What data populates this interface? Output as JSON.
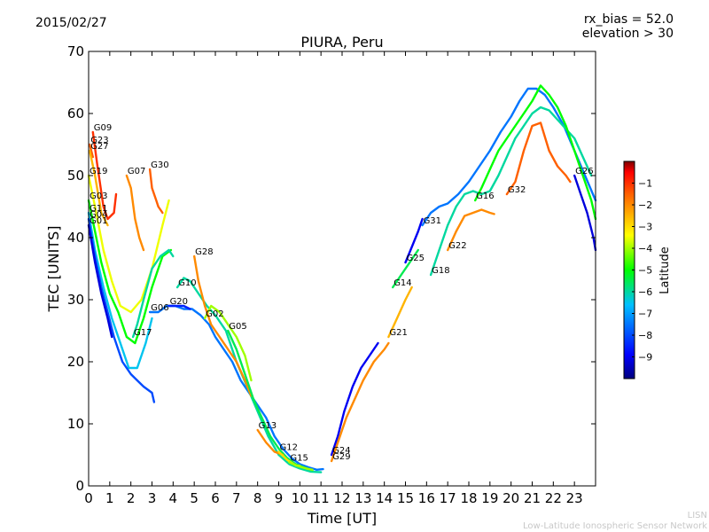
{
  "header": {
    "date": "2015/02/27",
    "rx_bias": "rx_bias = 52.0",
    "elevation": "elevation > 30",
    "title": "PIURA, Peru"
  },
  "footer": {
    "line1": "LISN",
    "line2": "Low-Latitude Ionospheric Sensor Network"
  },
  "chart_data": {
    "type": "scatter",
    "title": "PIURA, Peru",
    "xlabel": "Time [UT]",
    "ylabel": "TEC [UNITS]",
    "xlim": [
      0,
      24
    ],
    "ylim": [
      0,
      70
    ],
    "xticks": [
      0,
      1,
      2,
      3,
      4,
      5,
      6,
      7,
      8,
      9,
      10,
      11,
      12,
      13,
      14,
      15,
      16,
      17,
      18,
      19,
      20,
      21,
      22,
      23
    ],
    "yticks": [
      0,
      10,
      20,
      30,
      40,
      50,
      60,
      70
    ],
    "grid": false,
    "colorbar": {
      "label": "Latitude",
      "range": [
        -10,
        0
      ],
      "ticks": [
        -9,
        -8,
        -7,
        -6,
        -5,
        -4,
        -3,
        -2,
        -1
      ],
      "colors": [
        "#00007f",
        "#0000ff",
        "#007fff",
        "#00ffff",
        "#7fff7f",
        "#ffff00",
        "#ff7f00",
        "#ff0000",
        "#7f0000"
      ]
    },
    "series": [
      {
        "name": "G09",
        "lat": -1.0,
        "points": [
          [
            0.2,
            57
          ],
          [
            0.4,
            52
          ],
          [
            0.7,
            45
          ],
          [
            0.9,
            43
          ],
          [
            1.2,
            44
          ],
          [
            1.3,
            47
          ]
        ]
      },
      {
        "name": "G23",
        "lat": -1.5,
        "points": [
          [
            0.05,
            55
          ],
          [
            0.2,
            53
          ]
        ]
      },
      {
        "name": "G27",
        "lat": -2.5,
        "points": [
          [
            0.05,
            54
          ],
          [
            0.3,
            50
          ],
          [
            0.6,
            44
          ],
          [
            0.9,
            42
          ]
        ]
      },
      {
        "name": "G19",
        "lat": -3.5,
        "points": [
          [
            0.0,
            50
          ],
          [
            0.3,
            45
          ],
          [
            0.7,
            38
          ],
          [
            1.1,
            33
          ],
          [
            1.5,
            29
          ],
          [
            2.0,
            28
          ],
          [
            2.5,
            30
          ],
          [
            3.0,
            35
          ],
          [
            3.5,
            42
          ],
          [
            3.8,
            46
          ]
        ]
      },
      {
        "name": "G03",
        "lat": -5.0,
        "points": [
          [
            0.0,
            46
          ],
          [
            0.3,
            41
          ],
          [
            0.6,
            36
          ],
          [
            1.0,
            31
          ],
          [
            1.4,
            28
          ],
          [
            1.8,
            24
          ],
          [
            2.2,
            23
          ],
          [
            2.6,
            27
          ],
          [
            3.0,
            32
          ],
          [
            3.5,
            37
          ],
          [
            3.9,
            38
          ]
        ]
      },
      {
        "name": "G11",
        "lat": -6.5,
        "points": [
          [
            0.0,
            44
          ],
          [
            0.3,
            38
          ],
          [
            0.7,
            32
          ],
          [
            1.1,
            27
          ],
          [
            1.5,
            23
          ],
          [
            1.9,
            19
          ],
          [
            2.3,
            19
          ],
          [
            2.7,
            23
          ],
          [
            3.0,
            27
          ]
        ]
      },
      {
        "name": "G04",
        "lat": -8.0,
        "points": [
          [
            0.0,
            43
          ],
          [
            0.3,
            37
          ],
          [
            0.6,
            32
          ],
          [
            0.9,
            28
          ],
          [
            1.2,
            24
          ],
          [
            1.6,
            20
          ],
          [
            2.0,
            18
          ],
          [
            2.3,
            17
          ],
          [
            2.6,
            16
          ],
          [
            3.0,
            15
          ],
          [
            3.1,
            13.5
          ]
        ]
      },
      {
        "name": "G01",
        "lat": -9.2,
        "points": [
          [
            0.0,
            42
          ],
          [
            0.3,
            36
          ],
          [
            0.6,
            31
          ],
          [
            0.9,
            27
          ],
          [
            1.1,
            24
          ]
        ]
      },
      {
        "name": "G07",
        "lat": -2.0,
        "points": [
          [
            1.8,
            50
          ],
          [
            2.0,
            48
          ],
          [
            2.2,
            43
          ],
          [
            2.4,
            40
          ],
          [
            2.6,
            38
          ]
        ]
      },
      {
        "name": "G30",
        "lat": -1.5,
        "points": [
          [
            2.9,
            51
          ],
          [
            3.0,
            48
          ],
          [
            3.2,
            46
          ],
          [
            3.3,
            45
          ],
          [
            3.5,
            44
          ]
        ]
      },
      {
        "name": "G17",
        "lat": -6.0,
        "points": [
          [
            2.1,
            24
          ],
          [
            2.3,
            26
          ],
          [
            2.6,
            30
          ],
          [
            3.0,
            35
          ],
          [
            3.4,
            37
          ],
          [
            3.8,
            38
          ],
          [
            4.0,
            37
          ]
        ]
      },
      {
        "name": "G06",
        "lat": -7.5,
        "points": [
          [
            2.9,
            28
          ],
          [
            3.3,
            28
          ],
          [
            3.7,
            29
          ],
          [
            4.1,
            29
          ],
          [
            4.5,
            28.5
          ],
          [
            4.9,
            28.5
          ],
          [
            5.3,
            27.5
          ],
          [
            5.7,
            26
          ],
          [
            6.0,
            24
          ],
          [
            6.4,
            22
          ],
          [
            6.8,
            20
          ],
          [
            7.2,
            17
          ],
          [
            7.6,
            15
          ],
          [
            8.0,
            13
          ],
          [
            8.4,
            11
          ],
          [
            8.8,
            8
          ],
          [
            9.2,
            6
          ],
          [
            9.6,
            4.5
          ],
          [
            10.0,
            3.5
          ],
          [
            10.4,
            3
          ],
          [
            10.8,
            2.6
          ],
          [
            11.1,
            2.7
          ]
        ]
      },
      {
        "name": "G20",
        "lat": -8.5,
        "points": [
          [
            3.8,
            29
          ],
          [
            4.0,
            29
          ],
          [
            4.3,
            29
          ],
          [
            4.5,
            29
          ],
          [
            4.8,
            28.5
          ]
        ]
      },
      {
        "name": "G10",
        "lat": -6.0,
        "points": [
          [
            4.2,
            32
          ],
          [
            4.5,
            33.5
          ],
          [
            4.8,
            33
          ],
          [
            5.2,
            31
          ],
          [
            5.6,
            29
          ],
          [
            6.0,
            27.5
          ],
          [
            6.5,
            25
          ],
          [
            7.0,
            20
          ],
          [
            7.5,
            16
          ],
          [
            8.0,
            12
          ],
          [
            8.5,
            8
          ],
          [
            9.0,
            5
          ],
          [
            9.5,
            3.5
          ],
          [
            10.0,
            2.8
          ],
          [
            10.5,
            2.3
          ],
          [
            11.0,
            2.2
          ]
        ]
      },
      {
        "name": "G02",
        "lat": -4.0,
        "points": [
          [
            5.5,
            27
          ],
          [
            5.8,
            29
          ],
          [
            6.2,
            28
          ],
          [
            6.6,
            26
          ],
          [
            7.0,
            24
          ],
          [
            7.4,
            21
          ],
          [
            7.7,
            17
          ]
        ]
      },
      {
        "name": "G28",
        "lat": -2.0,
        "points": [
          [
            5.0,
            37
          ],
          [
            5.2,
            33
          ],
          [
            5.5,
            29
          ],
          [
            5.8,
            26
          ],
          [
            6.2,
            24
          ],
          [
            6.6,
            22
          ],
          [
            7.0,
            20
          ],
          [
            7.4,
            17
          ],
          [
            7.7,
            14.5
          ]
        ]
      },
      {
        "name": "G05",
        "lat": -5.5,
        "points": [
          [
            6.6,
            25
          ],
          [
            7.0,
            22
          ],
          [
            7.4,
            18
          ],
          [
            7.8,
            14
          ],
          [
            8.2,
            11
          ],
          [
            8.6,
            8
          ],
          [
            9.0,
            6
          ],
          [
            9.4,
            4.5
          ],
          [
            9.8,
            3.5
          ],
          [
            10.2,
            3
          ],
          [
            10.6,
            2.5
          ]
        ]
      },
      {
        "name": "G13",
        "lat": -2.0,
        "points": [
          [
            8.0,
            9
          ],
          [
            8.4,
            7
          ],
          [
            8.8,
            5.5
          ],
          [
            9.2,
            5
          ]
        ]
      },
      {
        "name": "G12",
        "lat": -3.0,
        "points": [
          [
            9.0,
            5.5
          ],
          [
            9.4,
            4.2
          ],
          [
            9.8,
            3.3
          ],
          [
            10.0,
            3.2
          ]
        ]
      },
      {
        "name": "G15",
        "lat": -4.0,
        "points": [
          [
            9.5,
            3.8
          ],
          [
            9.9,
            3.2
          ],
          [
            10.3,
            2.8
          ],
          [
            10.6,
            2.6
          ]
        ]
      },
      {
        "name": "G24",
        "lat": -9.0,
        "points": [
          [
            11.5,
            5
          ],
          [
            11.8,
            8
          ],
          [
            12.1,
            12
          ],
          [
            12.5,
            16
          ],
          [
            12.9,
            19
          ],
          [
            13.3,
            21
          ],
          [
            13.7,
            23
          ]
        ]
      },
      {
        "name": "G29",
        "lat": -2.0,
        "points": [
          [
            11.5,
            4
          ],
          [
            11.8,
            7
          ],
          [
            12.2,
            11
          ],
          [
            12.6,
            14
          ],
          [
            13.0,
            17
          ],
          [
            13.5,
            20
          ],
          [
            14.0,
            22
          ],
          [
            14.2,
            23
          ]
        ]
      },
      {
        "name": "G14",
        "lat": -5.5,
        "points": [
          [
            14.4,
            32
          ],
          [
            14.8,
            34
          ],
          [
            15.2,
            36
          ],
          [
            15.6,
            38
          ]
        ]
      },
      {
        "name": "G21",
        "lat": -2.5,
        "points": [
          [
            14.2,
            24
          ],
          [
            14.6,
            27
          ],
          [
            15.0,
            30
          ],
          [
            15.3,
            32
          ]
        ]
      },
      {
        "name": "G25",
        "lat": -9.0,
        "points": [
          [
            15.0,
            36
          ],
          [
            15.3,
            38.5
          ],
          [
            15.6,
            41
          ],
          [
            15.8,
            43
          ]
        ]
      },
      {
        "name": "G31",
        "lat": -7.5,
        "points": [
          [
            15.8,
            42
          ],
          [
            16.2,
            44
          ],
          [
            16.6,
            45
          ],
          [
            17.0,
            45.5
          ],
          [
            17.5,
            47
          ],
          [
            18.0,
            49
          ],
          [
            18.5,
            51.5
          ],
          [
            19.0,
            54
          ],
          [
            19.5,
            57
          ],
          [
            20.0,
            59.5
          ],
          [
            20.4,
            62
          ],
          [
            20.8,
            64
          ],
          [
            21.2,
            64
          ],
          [
            21.6,
            63
          ],
          [
            22.0,
            61
          ],
          [
            22.5,
            58
          ],
          [
            23.0,
            54
          ],
          [
            23.5,
            50
          ],
          [
            24.0,
            46
          ]
        ]
      },
      {
        "name": "G18",
        "lat": -6.0,
        "points": [
          [
            16.2,
            34
          ],
          [
            16.6,
            38
          ],
          [
            17.0,
            42
          ],
          [
            17.4,
            45
          ],
          [
            17.8,
            47
          ],
          [
            18.2,
            47.5
          ],
          [
            18.6,
            47
          ],
          [
            19.0,
            47.5
          ],
          [
            19.4,
            50
          ],
          [
            19.8,
            53
          ],
          [
            20.2,
            56
          ],
          [
            20.6,
            58
          ],
          [
            21.0,
            60
          ],
          [
            21.4,
            61
          ],
          [
            21.8,
            60.5
          ],
          [
            22.2,
            59
          ],
          [
            22.6,
            57.5
          ],
          [
            23.0,
            56
          ],
          [
            23.4,
            53
          ],
          [
            23.8,
            50
          ]
        ]
      },
      {
        "name": "G22",
        "lat": -2.0,
        "points": [
          [
            17.0,
            38
          ],
          [
            17.4,
            41
          ],
          [
            17.8,
            43.5
          ],
          [
            18.2,
            44
          ],
          [
            18.6,
            44.5
          ],
          [
            19.0,
            44
          ],
          [
            19.2,
            43.8
          ]
        ]
      },
      {
        "name": "G16",
        "lat": -5.0,
        "points": [
          [
            18.3,
            46
          ],
          [
            18.6,
            48
          ],
          [
            19.0,
            51
          ],
          [
            19.4,
            54
          ],
          [
            19.8,
            56
          ],
          [
            20.2,
            58
          ],
          [
            20.6,
            60
          ],
          [
            21.0,
            62
          ],
          [
            21.4,
            64.5
          ],
          [
            21.8,
            63
          ],
          [
            22.2,
            61
          ],
          [
            22.6,
            58
          ],
          [
            23.0,
            54
          ],
          [
            23.4,
            50
          ],
          [
            23.8,
            46
          ],
          [
            24.0,
            43
          ]
        ]
      },
      {
        "name": "G32",
        "lat": -1.5,
        "points": [
          [
            19.8,
            47
          ],
          [
            20.2,
            49
          ],
          [
            20.6,
            54
          ],
          [
            21.0,
            58
          ],
          [
            21.4,
            58.5
          ],
          [
            21.8,
            54
          ],
          [
            22.2,
            51.5
          ],
          [
            22.6,
            50
          ],
          [
            22.8,
            49
          ]
        ]
      },
      {
        "name": "G26",
        "lat": -9.2,
        "points": [
          [
            23.0,
            50
          ],
          [
            23.3,
            47
          ],
          [
            23.6,
            44
          ],
          [
            23.9,
            40
          ],
          [
            24.0,
            38
          ]
        ]
      }
    ]
  }
}
